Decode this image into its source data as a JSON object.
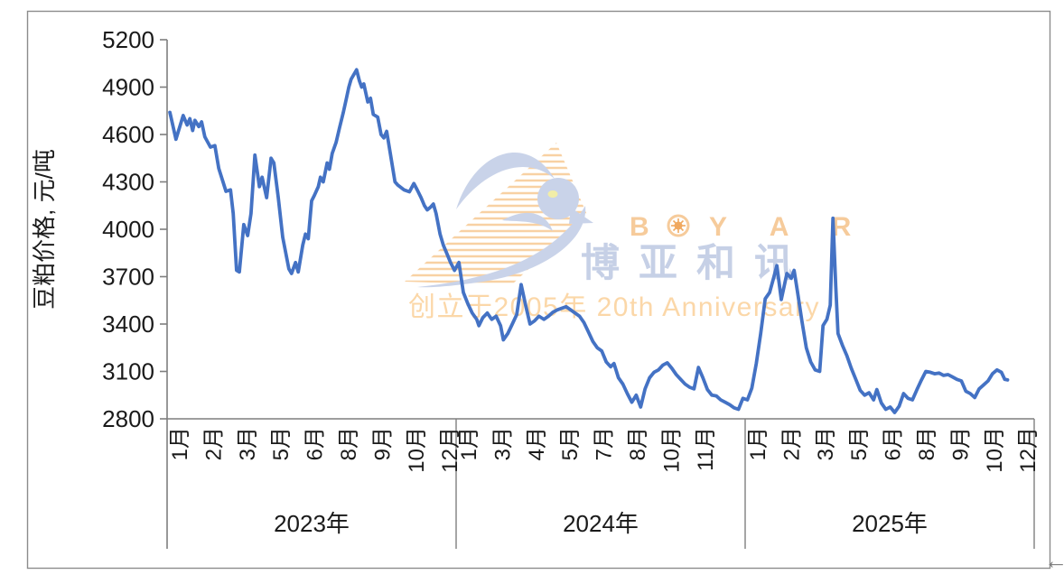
{
  "frame": {
    "arrow": "←"
  },
  "watermark": {
    "brand_en_b": "B",
    "brand_en_yar": "Y A R",
    "brand_cn": "博亚和讯",
    "anniversary": "创立于2005年 20th Anniversary",
    "colors": {
      "bird": "#C9D3E9",
      "cn_text": "#C6D0E6",
      "orange_text": "#F6CB9B",
      "anniversary_text": "#FBD7A8",
      "speedlines": "#F8D1A3",
      "eye": "#F1EDA8"
    }
  },
  "chart_data": {
    "type": "line",
    "title": "",
    "ylabel": "豆粕价格, 元/吨",
    "xlabel": "",
    "ylim": [
      2800,
      5200
    ],
    "yticks": [
      5200,
      4900,
      4600,
      4300,
      4000,
      3700,
      3400,
      3100,
      2800
    ],
    "grid": false,
    "legend_position": "none",
    "line_color": "#4472C4",
    "axis_color": "#7F7F7F",
    "text_color": "#1A1A1A",
    "x_encoding": "weekly index 0-156 spanning Jan 2023 - Dec 2025",
    "year_axis": [
      {
        "label": "2023年",
        "months": [
          "1月",
          "2月",
          "3月",
          "5月",
          "6月",
          "8月",
          "9月",
          "10月",
          "12月"
        ]
      },
      {
        "label": "2024年",
        "months": [
          "1月",
          "3月",
          "4月",
          "5月",
          "7月",
          "8月",
          "10月",
          "11月"
        ]
      },
      {
        "label": "2025年",
        "months": [
          "1月",
          "2月",
          "3月",
          "5月",
          "6月",
          "8月",
          "9月",
          "10月",
          "12月"
        ]
      }
    ],
    "series": [
      {
        "name": "豆粕价格",
        "points": [
          [
            0.5,
            4740
          ],
          [
            1.6,
            4570
          ],
          [
            2.9,
            4720
          ],
          [
            3.6,
            4660
          ],
          [
            4.1,
            4700
          ],
          [
            4.6,
            4625
          ],
          [
            5.0,
            4690
          ],
          [
            5.7,
            4650
          ],
          [
            6.2,
            4680
          ],
          [
            6.8,
            4585
          ],
          [
            7.8,
            4520
          ],
          [
            8.6,
            4530
          ],
          [
            9.3,
            4385
          ],
          [
            10.6,
            4240
          ],
          [
            11.4,
            4250
          ],
          [
            11.9,
            4100
          ],
          [
            12.5,
            3740
          ],
          [
            13.0,
            3730
          ],
          [
            13.8,
            4030
          ],
          [
            14.5,
            3960
          ],
          [
            15.1,
            4100
          ],
          [
            15.8,
            4470
          ],
          [
            16.6,
            4270
          ],
          [
            17.1,
            4330
          ],
          [
            17.9,
            4200
          ],
          [
            18.7,
            4450
          ],
          [
            19.2,
            4420
          ],
          [
            20.0,
            4200
          ],
          [
            20.8,
            3950
          ],
          [
            21.9,
            3750
          ],
          [
            22.4,
            3720
          ],
          [
            23.1,
            3790
          ],
          [
            23.6,
            3730
          ],
          [
            24.4,
            3900
          ],
          [
            24.9,
            3970
          ],
          [
            25.4,
            3940
          ],
          [
            26.0,
            4180
          ],
          [
            26.5,
            4215
          ],
          [
            27.2,
            4270
          ],
          [
            27.6,
            4330
          ],
          [
            28.1,
            4300
          ],
          [
            28.8,
            4420
          ],
          [
            29.2,
            4380
          ],
          [
            29.7,
            4480
          ],
          [
            30.4,
            4550
          ],
          [
            31.0,
            4640
          ],
          [
            31.7,
            4740
          ],
          [
            32.2,
            4820
          ],
          [
            32.7,
            4900
          ],
          [
            33.1,
            4950
          ],
          [
            34.1,
            5010
          ],
          [
            34.6,
            4940
          ],
          [
            35.0,
            4900
          ],
          [
            35.4,
            4920
          ],
          [
            36.1,
            4806
          ],
          [
            36.6,
            4830
          ],
          [
            37.1,
            4727
          ],
          [
            37.9,
            4710
          ],
          [
            38.5,
            4600
          ],
          [
            39.0,
            4578
          ],
          [
            39.5,
            4620
          ],
          [
            40.3,
            4450
          ],
          [
            41.0,
            4300
          ],
          [
            41.5,
            4280
          ],
          [
            42.6,
            4250
          ],
          [
            43.6,
            4237
          ],
          [
            44.4,
            4290
          ],
          [
            45.0,
            4250
          ],
          [
            45.7,
            4200
          ],
          [
            46.3,
            4150
          ],
          [
            46.8,
            4123
          ],
          [
            47.4,
            4140
          ],
          [
            47.9,
            4160
          ],
          [
            48.4,
            4100
          ],
          [
            49.1,
            3970
          ],
          [
            49.7,
            3900
          ],
          [
            50.4,
            3840
          ],
          [
            51.0,
            3790
          ],
          [
            51.7,
            3740
          ],
          [
            52.5,
            3790
          ],
          [
            53.3,
            3600
          ],
          [
            54.1,
            3530
          ],
          [
            54.9,
            3470
          ],
          [
            55.7,
            3430
          ],
          [
            56.1,
            3390
          ],
          [
            56.8,
            3440
          ],
          [
            57.6,
            3470
          ],
          [
            58.4,
            3430
          ],
          [
            59.2,
            3450
          ],
          [
            60.0,
            3390
          ],
          [
            60.5,
            3300
          ],
          [
            61.3,
            3340
          ],
          [
            62.1,
            3400
          ],
          [
            62.9,
            3460
          ],
          [
            63.7,
            3650
          ],
          [
            64.5,
            3520
          ],
          [
            65.3,
            3400
          ],
          [
            66.1,
            3420
          ],
          [
            66.9,
            3450
          ],
          [
            67.8,
            3430
          ],
          [
            68.6,
            3450
          ],
          [
            69.4,
            3475
          ],
          [
            70.2,
            3490
          ],
          [
            71.0,
            3500
          ],
          [
            71.8,
            3510
          ],
          [
            72.6,
            3490
          ],
          [
            73.4,
            3470
          ],
          [
            74.2,
            3450
          ],
          [
            75.0,
            3410
          ],
          [
            75.8,
            3350
          ],
          [
            76.6,
            3290
          ],
          [
            77.4,
            3250
          ],
          [
            78.2,
            3230
          ],
          [
            79.0,
            3160
          ],
          [
            79.8,
            3130
          ],
          [
            80.4,
            3150
          ],
          [
            81.2,
            3060
          ],
          [
            82.0,
            3020
          ],
          [
            82.8,
            2960
          ],
          [
            83.6,
            2905
          ],
          [
            84.4,
            2950
          ],
          [
            85.2,
            2875
          ],
          [
            86.0,
            2990
          ],
          [
            86.8,
            3060
          ],
          [
            87.6,
            3095
          ],
          [
            88.4,
            3110
          ],
          [
            89.2,
            3140
          ],
          [
            90.0,
            3155
          ],
          [
            90.8,
            3120
          ],
          [
            91.6,
            3080
          ],
          [
            92.4,
            3050
          ],
          [
            93.2,
            3020
          ],
          [
            94.0,
            3000
          ],
          [
            94.8,
            2990
          ],
          [
            95.6,
            3125
          ],
          [
            96.4,
            3060
          ],
          [
            97.2,
            2985
          ],
          [
            98.0,
            2950
          ],
          [
            98.8,
            2945
          ],
          [
            99.6,
            2920
          ],
          [
            100.4,
            2905
          ],
          [
            101.2,
            2890
          ],
          [
            102.0,
            2870
          ],
          [
            102.8,
            2860
          ],
          [
            103.6,
            2930
          ],
          [
            104.4,
            2920
          ],
          [
            105.2,
            2995
          ],
          [
            106.0,
            3150
          ],
          [
            106.8,
            3340
          ],
          [
            107.6,
            3560
          ],
          [
            108.4,
            3600
          ],
          [
            109.1,
            3690
          ],
          [
            109.7,
            3770
          ],
          [
            110.5,
            3555
          ],
          [
            111.5,
            3720
          ],
          [
            112.3,
            3690
          ],
          [
            112.8,
            3740
          ],
          [
            113.4,
            3610
          ],
          [
            114.2,
            3420
          ],
          [
            115.0,
            3250
          ],
          [
            115.8,
            3160
          ],
          [
            116.6,
            3110
          ],
          [
            117.4,
            3100
          ],
          [
            118.0,
            3390
          ],
          [
            118.7,
            3430
          ],
          [
            119.3,
            3520
          ],
          [
            119.8,
            4070
          ],
          [
            120.3,
            3640
          ],
          [
            120.7,
            3340
          ],
          [
            121.5,
            3265
          ],
          [
            122.3,
            3200
          ],
          [
            123.1,
            3120
          ],
          [
            123.9,
            3050
          ],
          [
            124.7,
            2980
          ],
          [
            125.5,
            2950
          ],
          [
            126.3,
            2965
          ],
          [
            127.1,
            2920
          ],
          [
            127.7,
            2985
          ],
          [
            128.5,
            2900
          ],
          [
            129.3,
            2860
          ],
          [
            130.1,
            2875
          ],
          [
            130.9,
            2840
          ],
          [
            131.7,
            2880
          ],
          [
            132.5,
            2960
          ],
          [
            133.3,
            2930
          ],
          [
            134.1,
            2920
          ],
          [
            134.9,
            2985
          ],
          [
            135.7,
            3045
          ],
          [
            136.5,
            3100
          ],
          [
            137.3,
            3095
          ],
          [
            138.1,
            3085
          ],
          [
            138.9,
            3090
          ],
          [
            139.7,
            3075
          ],
          [
            140.5,
            3080
          ],
          [
            141.3,
            3065
          ],
          [
            142.1,
            3050
          ],
          [
            142.9,
            3040
          ],
          [
            143.7,
            2975
          ],
          [
            144.5,
            2960
          ],
          [
            145.3,
            2935
          ],
          [
            146.1,
            2990
          ],
          [
            146.9,
            3015
          ],
          [
            147.7,
            3040
          ],
          [
            148.5,
            3085
          ],
          [
            149.3,
            3110
          ],
          [
            150.1,
            3095
          ],
          [
            150.7,
            3050
          ],
          [
            151.2,
            3046
          ]
        ]
      }
    ]
  }
}
